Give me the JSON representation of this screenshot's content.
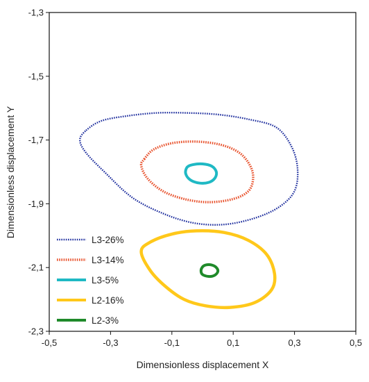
{
  "chart_data": {
    "type": "line",
    "title": "",
    "xlabel": "Dimensionless displacement  X",
    "ylabel": "Dimensionless displacement  Y",
    "xlim": [
      -0.5,
      0.5
    ],
    "ylim": [
      -2.3,
      -1.3
    ],
    "x_ticks": [
      "-0,5",
      "-0,3",
      "-0,1",
      "0,1",
      "0,3",
      "0,5"
    ],
    "x_tick_values": [
      -0.5,
      -0.3,
      -0.1,
      0.1,
      0.3,
      0.5
    ],
    "y_ticks": [
      "-1,3",
      "-1,5",
      "-1,7",
      "-1,9",
      "-2,1",
      "-2,3"
    ],
    "y_tick_values": [
      -1.3,
      -1.5,
      -1.7,
      -1.9,
      -2.1,
      -2.3
    ],
    "grid": false,
    "legend_position": "bottom-left",
    "series": [
      {
        "name": "L3-26%",
        "color": "#1f2f9e",
        "style": "dotted",
        "x": [
          -0.38,
          -0.33,
          -0.25,
          -0.15,
          -0.05,
          0.05,
          0.15,
          0.24,
          0.29,
          0.31,
          0.3,
          0.25,
          0.17,
          0.07,
          -0.03,
          -0.13,
          -0.23,
          -0.32,
          -0.38,
          -0.4,
          -0.38
        ],
        "y": [
          -1.67,
          -1.64,
          -1.625,
          -1.615,
          -1.615,
          -1.62,
          -1.635,
          -1.66,
          -1.72,
          -1.79,
          -1.86,
          -1.91,
          -1.945,
          -1.965,
          -1.96,
          -1.93,
          -1.88,
          -1.8,
          -1.74,
          -1.7,
          -1.67
        ]
      },
      {
        "name": "L3-14%",
        "color": "#e8532e",
        "style": "dotted",
        "x": [
          -0.19,
          -0.16,
          -0.1,
          -0.02,
          0.06,
          0.12,
          0.155,
          0.165,
          0.15,
          0.1,
          0.02,
          -0.06,
          -0.13,
          -0.18,
          -0.2,
          -0.19
        ],
        "y": [
          -1.76,
          -1.73,
          -1.71,
          -1.705,
          -1.715,
          -1.74,
          -1.78,
          -1.82,
          -1.86,
          -1.885,
          -1.895,
          -1.885,
          -1.86,
          -1.82,
          -1.78,
          -1.76
        ]
      },
      {
        "name": "L3-5%",
        "color": "#1fb9c4",
        "style": "solid",
        "x": [
          -0.05,
          -0.03,
          0.0,
          0.03,
          0.045,
          0.04,
          0.02,
          -0.01,
          -0.04,
          -0.055,
          -0.05
        ],
        "y": [
          -1.785,
          -1.777,
          -1.775,
          -1.782,
          -1.8,
          -1.82,
          -1.833,
          -1.835,
          -1.825,
          -1.805,
          -1.785
        ]
      },
      {
        "name": "L2-16%",
        "color": "#ffc81a",
        "style": "solid",
        "x": [
          -0.2,
          -0.17,
          -0.1,
          -0.02,
          0.07,
          0.15,
          0.21,
          0.235,
          0.225,
          0.17,
          0.09,
          0.01,
          -0.06,
          -0.12,
          -0.17,
          -0.2
        ],
        "y": [
          -2.05,
          -2.02,
          -1.995,
          -1.985,
          -1.99,
          -2.015,
          -2.06,
          -2.12,
          -2.17,
          -2.21,
          -2.225,
          -2.22,
          -2.2,
          -2.16,
          -2.11,
          -2.05
        ]
      },
      {
        "name": "L2-3%",
        "color": "#1f8a2a",
        "style": "solid",
        "x": [
          0.0,
          0.01,
          0.03,
          0.045,
          0.05,
          0.04,
          0.02,
          0.0,
          -0.005,
          0.0
        ],
        "y": [
          -2.098,
          -2.092,
          -2.092,
          -2.1,
          -2.112,
          -2.124,
          -2.128,
          -2.122,
          -2.11,
          -2.098
        ]
      }
    ]
  }
}
